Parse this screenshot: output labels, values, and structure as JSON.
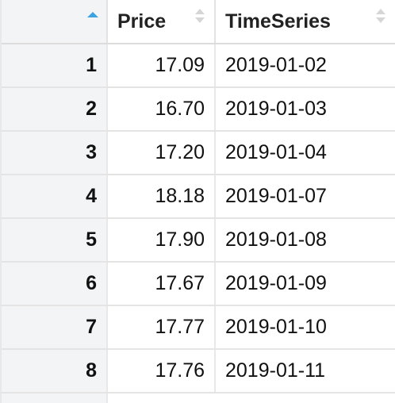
{
  "table": {
    "columns": [
      {
        "label": ""
      },
      {
        "label": "Price"
      },
      {
        "label": "TimeSeries"
      }
    ],
    "sort": {
      "column": "rownames",
      "direction": "ascending"
    },
    "rows": [
      {
        "rownum": "1",
        "price": "17.09",
        "ts": "2019-01-02"
      },
      {
        "rownum": "2",
        "price": "16.70",
        "ts": "2019-01-03"
      },
      {
        "rownum": "3",
        "price": "17.20",
        "ts": "2019-01-04"
      },
      {
        "rownum": "4",
        "price": "18.18",
        "ts": "2019-01-07"
      },
      {
        "rownum": "5",
        "price": "17.90",
        "ts": "2019-01-08"
      },
      {
        "rownum": "6",
        "price": "17.67",
        "ts": "2019-01-09"
      },
      {
        "rownum": "7",
        "price": "17.77",
        "ts": "2019-01-10"
      },
      {
        "rownum": "8",
        "price": "17.76",
        "ts": "2019-01-11"
      }
    ]
  },
  "colors": {
    "sort_active": "#3aa3e0",
    "sort_inactive": "#d6d6d6",
    "rownum_bg": "#f2f4f5"
  }
}
